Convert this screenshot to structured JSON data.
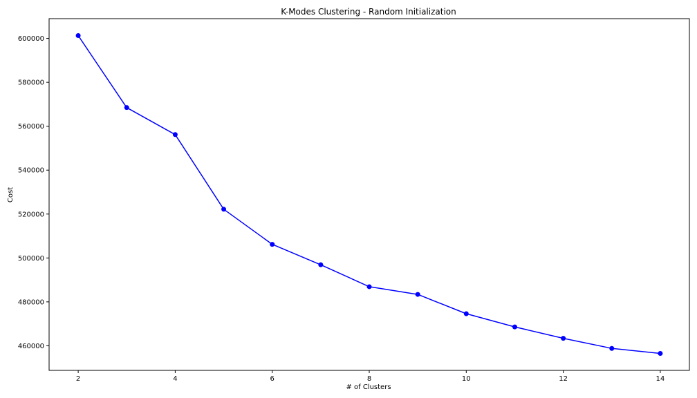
{
  "chart_data": {
    "type": "line",
    "title": "K-Modes Clustering - Random Initialization",
    "xlabel": "# of Clusters",
    "ylabel": "Cost",
    "x": [
      2,
      3,
      4,
      5,
      6,
      7,
      8,
      9,
      10,
      11,
      12,
      13,
      14
    ],
    "series": [
      {
        "values": [
          601300,
          568500,
          556200,
          522200,
          506200,
          496900,
          486900,
          483400,
          474600,
          468600,
          463400,
          458800,
          456500
        ],
        "color": "#0000ff",
        "marker": "circle"
      }
    ],
    "xlim": [
      1.4,
      14.6
    ],
    "ylim": [
      448800,
      609000
    ],
    "xticks": [
      2,
      4,
      6,
      8,
      10,
      12,
      14
    ],
    "yticks": [
      460000,
      480000,
      500000,
      520000,
      540000,
      560000,
      580000,
      600000
    ],
    "grid": false
  }
}
